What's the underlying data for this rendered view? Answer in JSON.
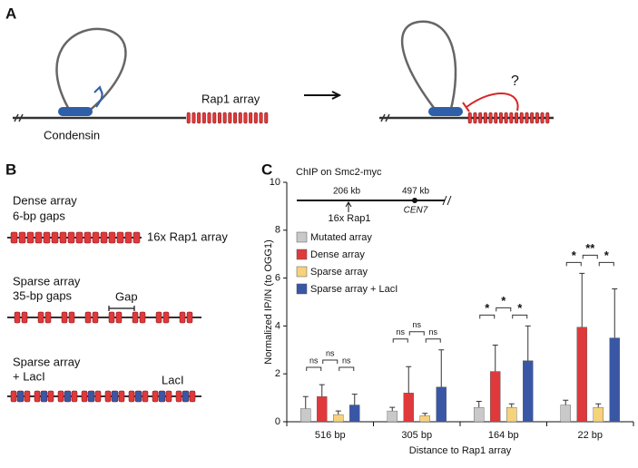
{
  "panel_a": {
    "letter": "A",
    "condensin": "Condensin",
    "array": "Rap1 array",
    "question": "?"
  },
  "panel_b": {
    "letter": "B",
    "dense_title": "Dense array",
    "dense_gaps": "6-bp gaps",
    "array_label": "16x Rap1 array",
    "sparse_title": "Sparse array",
    "sparse_gaps": "35-bp gaps",
    "gap": "Gap",
    "lacl_title": "Sparse array",
    "lacl_sub": "+ LacI",
    "lacl": "LacI"
  },
  "panel_c": {
    "letter": "C"
  },
  "chart_data": {
    "type": "bar",
    "title": "ChIP on Smc2-myc",
    "x_label": "Distance to Rap1 array",
    "y_label": "Normalized IP/IN (to OGG1)",
    "categories": [
      "516 bp",
      "305 bp",
      "164 bp",
      "22 bp"
    ],
    "series": [
      {
        "name": "Mutated array",
        "color": "#c9c9c9",
        "values": [
          0.55,
          0.45,
          0.6,
          0.7
        ],
        "errors": [
          0.5,
          0.15,
          0.25,
          0.2
        ]
      },
      {
        "name": "Dense array",
        "color": "#e0393b",
        "values": [
          1.05,
          1.2,
          2.1,
          3.95
        ],
        "errors": [
          0.5,
          1.1,
          1.1,
          2.25
        ]
      },
      {
        "name": "Sparse array",
        "color": "#f6d27c",
        "values": [
          0.3,
          0.25,
          0.6,
          0.6
        ],
        "errors": [
          0.15,
          0.1,
          0.15,
          0.15
        ]
      },
      {
        "name": "Sparse array + LacI",
        "color": "#3a57a6",
        "values": [
          0.7,
          1.45,
          2.55,
          3.5
        ],
        "errors": [
          0.45,
          1.55,
          1.45,
          2.05
        ]
      }
    ],
    "significance": [
      [
        "ns",
        "ns",
        "ns"
      ],
      [
        "ns",
        "ns",
        "ns"
      ],
      [
        "*",
        "*",
        "*"
      ],
      [
        "*",
        "**",
        "*"
      ]
    ],
    "inset": {
      "left": "206 kb",
      "right": "497 kb",
      "array": "16x Rap1",
      "cen": "CEN7"
    },
    "ylim": [
      0,
      10
    ],
    "yticks": [
      0,
      2,
      4,
      6,
      8,
      10
    ]
  }
}
